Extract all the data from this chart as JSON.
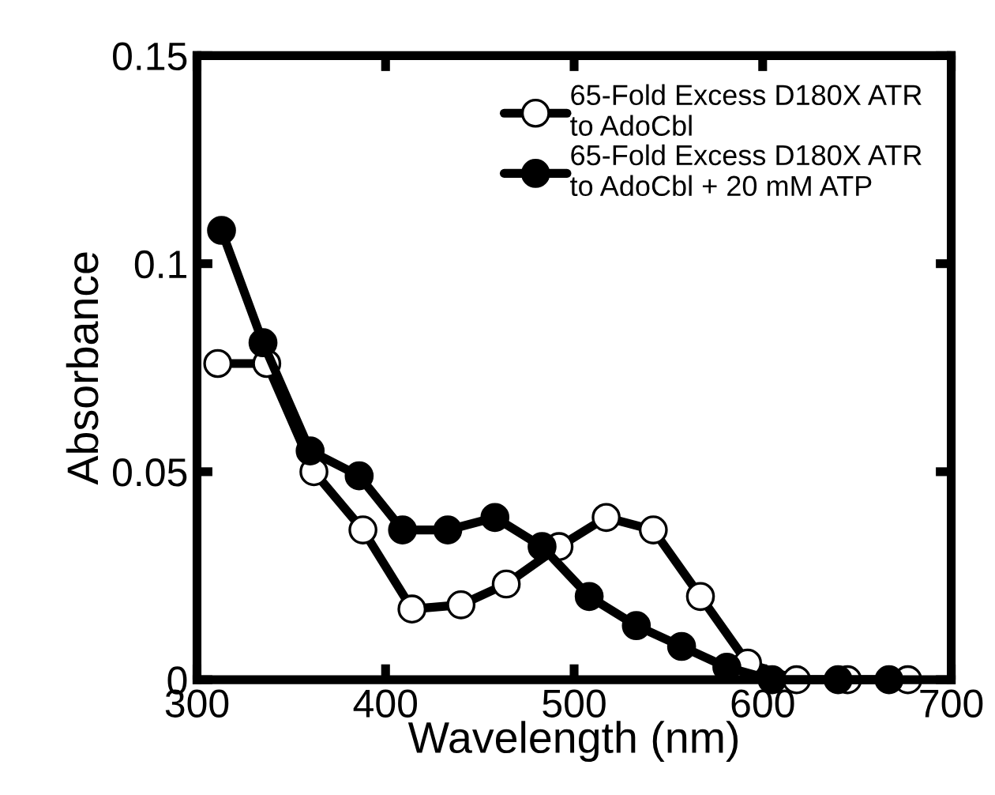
{
  "chart_data": {
    "type": "line",
    "xlabel": "Wavelength (nm)",
    "ylabel": "Absorbance",
    "xlim": [
      300,
      700
    ],
    "xticks": [
      300,
      400,
      500,
      600,
      700
    ],
    "ylim": [
      0,
      0.15
    ],
    "yticks": [
      0,
      0.05,
      0.1,
      0.15
    ],
    "legend": "top right",
    "marker": "circle",
    "line_style": "solid",
    "grid": false,
    "series": [
      {
        "name": "65-Fold Excess D180X ATR\nto AdoCbl",
        "color": "#ffffff",
        "x": [
          311,
          337,
          362,
          388,
          414,
          440,
          464,
          492,
          517,
          542,
          567,
          592,
          618,
          645,
          677
        ],
        "values": [
          0.076,
          0.076,
          0.05,
          0.036,
          0.017,
          0.018,
          0.023,
          0.032,
          0.039,
          0.036,
          0.02,
          0.004,
          0.0,
          0.0,
          0.0
        ]
      },
      {
        "name": "65-Fold Excess D180X ATR\nto AdoCbl + 20 mM ATP",
        "color": "#000000",
        "x": [
          313,
          335,
          360,
          386,
          409,
          433,
          458,
          483,
          508,
          533,
          557,
          581,
          605,
          640,
          667
        ],
        "values": [
          0.108,
          0.081,
          0.055,
          0.049,
          0.036,
          0.036,
          0.039,
          0.032,
          0.02,
          0.013,
          0.008,
          0.003,
          0.0,
          0.0,
          0.0
        ]
      }
    ]
  }
}
